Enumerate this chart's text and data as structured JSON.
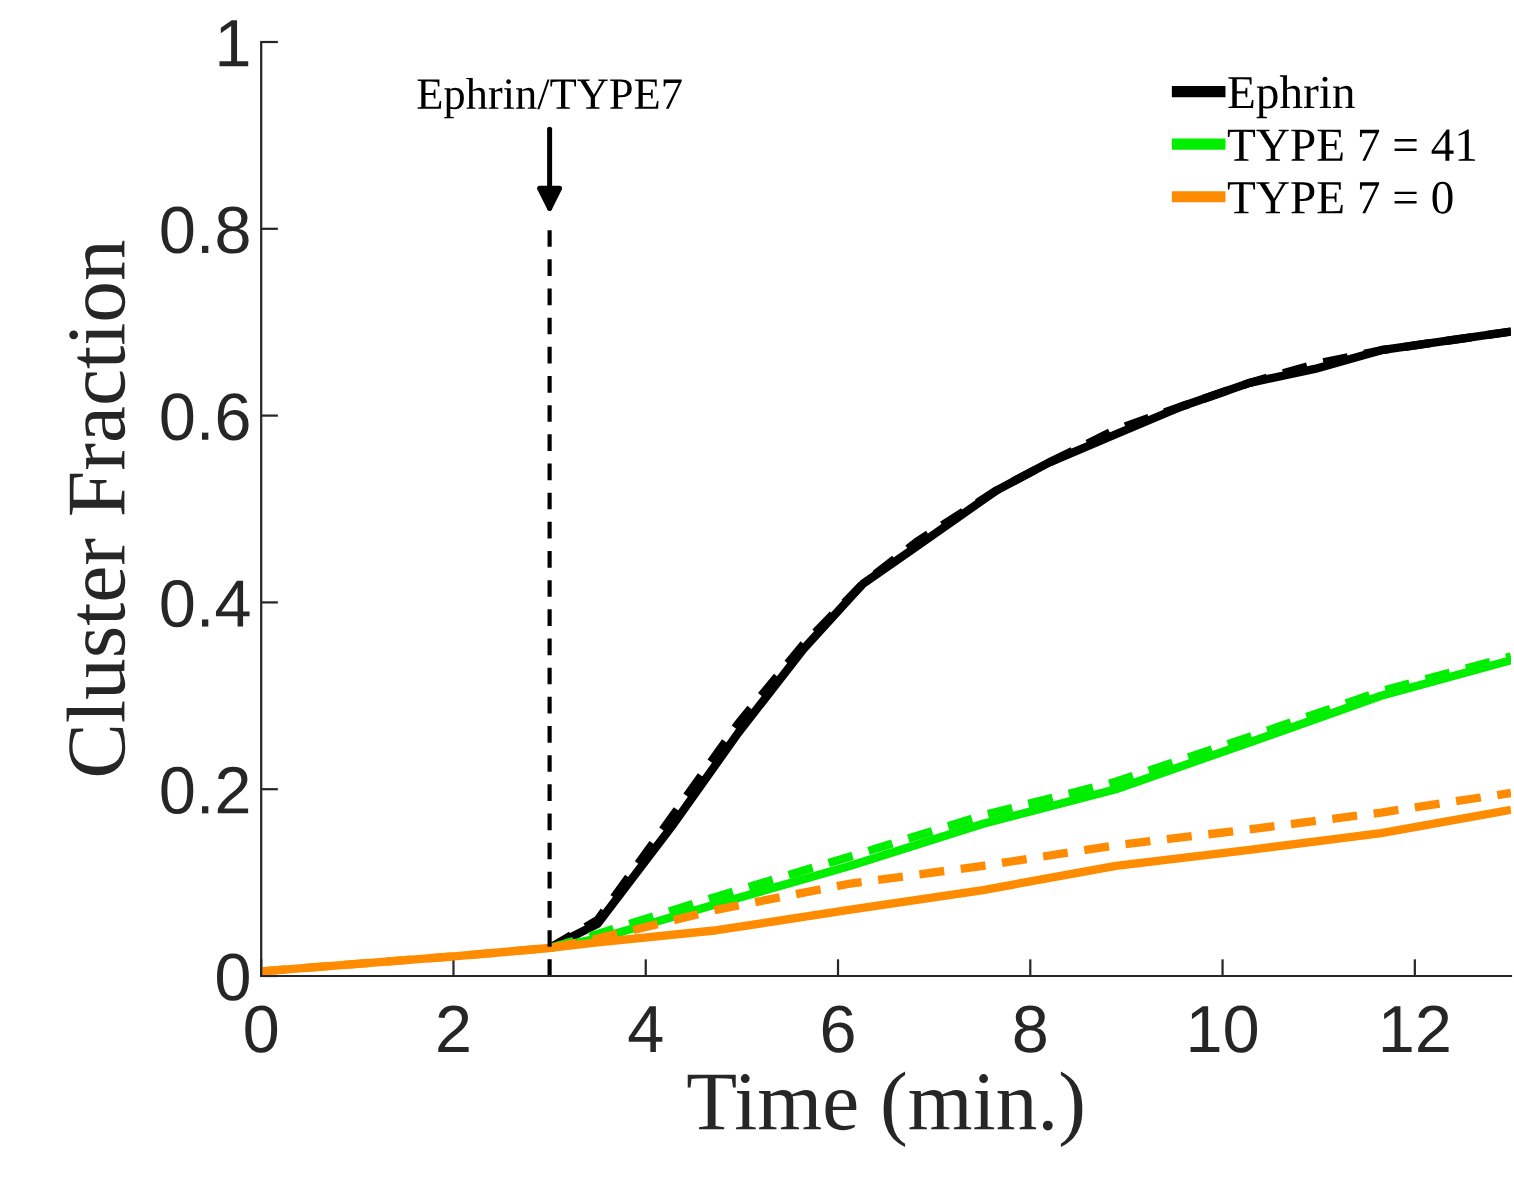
{
  "chart_data": {
    "type": "line",
    "xlabel": "Time (min.)",
    "ylabel": "Cluster Fraction",
    "xlim": [
      0,
      13
    ],
    "ylim": [
      0,
      1
    ],
    "xticks": [
      0,
      2,
      4,
      6,
      8,
      10,
      12
    ],
    "yticks": [
      0,
      0.2,
      0.4,
      0.6,
      0.8,
      1
    ],
    "grid": false,
    "legend": "top right",
    "marker": "none",
    "annotations": [
      {
        "text": "Ephrin/TYPE7",
        "x": 3,
        "y": 0.81
      }
    ],
    "ref_lines": [
      {
        "axis": "x",
        "value": 3,
        "color": "#000000",
        "line_style": "dashed"
      }
    ],
    "series": [
      {
        "name": "Ephrin",
        "color": "#000000",
        "line_style": "solid",
        "x": [
          3,
          3.5,
          4.27,
          4.96,
          5.64,
          6.26,
          6.82,
          7.65,
          8.2,
          8.89,
          9.58,
          10.28,
          10.96,
          11.65,
          13
        ],
        "values": [
          0.03,
          0.056,
          0.16,
          0.26,
          0.35,
          0.42,
          0.46,
          0.52,
          0.55,
          0.58,
          0.61,
          0.635,
          0.65,
          0.67,
          0.69
        ]
      },
      {
        "color": "#000000",
        "line_style": "dashed",
        "x": [
          3,
          3.5,
          4.27,
          4.96,
          5.64,
          6.26,
          6.82,
          7.65,
          8.2,
          8.89,
          9.58,
          10.28,
          10.96,
          11.65,
          13
        ],
        "values": [
          0.03,
          0.06,
          0.17,
          0.27,
          0.355,
          0.42,
          0.465,
          0.52,
          0.55,
          0.585,
          0.61,
          0.635,
          0.655,
          0.67,
          0.69
        ]
      },
      {
        "name": "TYPE 7 = 41",
        "color": "#00ee00",
        "line_style": "solid",
        "x": [
          3,
          3.5,
          4.74,
          6.13,
          7.51,
          8.89,
          10.28,
          11.65,
          13
        ],
        "values": [
          0.03,
          0.04,
          0.077,
          0.118,
          0.163,
          0.2,
          0.25,
          0.3,
          0.338
        ]
      },
      {
        "color": "#00ee00",
        "line_style": "dashed",
        "x": [
          3,
          3.5,
          4.74,
          6.13,
          7.51,
          8.89,
          10.28,
          11.65,
          13
        ],
        "values": [
          0.03,
          0.045,
          0.085,
          0.128,
          0.172,
          0.208,
          0.256,
          0.305,
          0.342
        ]
      },
      {
        "name": "TYPE 7 = 0",
        "color": "#ff8c00",
        "line_style": "solid",
        "x": [
          0,
          1,
          2,
          3,
          3.5,
          4.74,
          6.13,
          7.51,
          8.89,
          10.28,
          11.65,
          13
        ],
        "values": [
          0.005,
          0.013,
          0.021,
          0.03,
          0.036,
          0.049,
          0.071,
          0.092,
          0.118,
          0.135,
          0.153,
          0.178
        ]
      },
      {
        "color": "#ff8c00",
        "line_style": "dashed",
        "x": [
          0,
          1,
          2,
          3,
          3.5,
          4.74,
          6.13,
          7.51,
          8.89,
          10.28,
          11.65,
          13
        ],
        "values": [
          0.005,
          0.013,
          0.021,
          0.03,
          0.04,
          0.071,
          0.099,
          0.118,
          0.14,
          0.157,
          0.175,
          0.196
        ]
      }
    ]
  }
}
